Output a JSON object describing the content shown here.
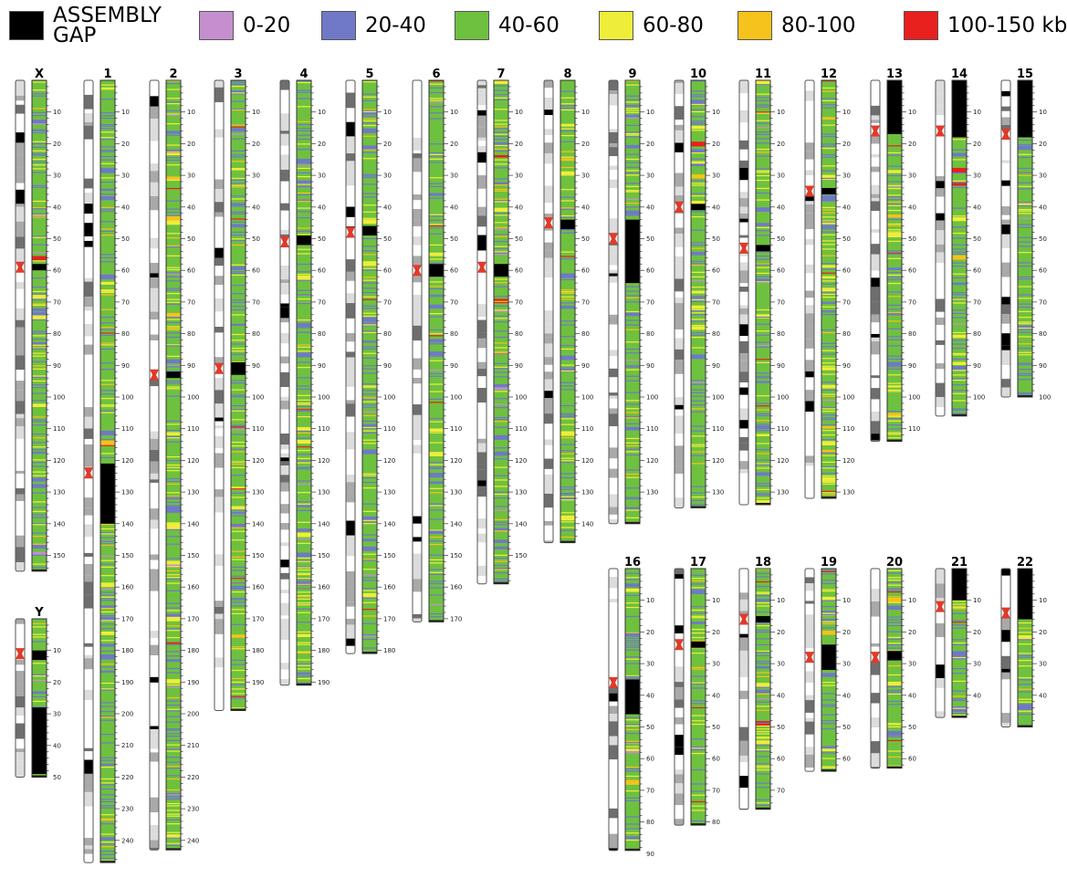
{
  "legend": {
    "items": [
      {
        "label": "ASSEMBLY GAP",
        "line1": "ASSEMBLY",
        "line2": "GAP",
        "color": "#000000",
        "kind": "gap"
      },
      {
        "label": "0-20",
        "color": "#c58fcf"
      },
      {
        "label": "20-40",
        "color": "#7079c7"
      },
      {
        "label": "40-60",
        "color": "#6ec13f"
      },
      {
        "label": "60-80",
        "color": "#eeee3a"
      },
      {
        "label": "80-100",
        "color": "#f6c21c"
      },
      {
        "label": "100-150 kb",
        "color": "#e8201e"
      }
    ]
  },
  "palette": {
    "band_white": "#ffffff",
    "band_light": "#dcdcdc",
    "band_mid": "#a9a9a9",
    "band_dark": "#6e6e6e",
    "band_black": "#000000",
    "centromere": "#e03a2a",
    "outline": "#555555"
  },
  "chromosomes": [
    {
      "name": "X",
      "length_mb": 155,
      "centromere_mb": 59,
      "gaps": [
        [
          58,
          60
        ]
      ],
      "ticks": [
        10,
        20,
        30,
        40,
        50,
        60,
        70,
        80,
        90,
        100,
        110,
        120,
        130,
        140,
        150
      ]
    },
    {
      "name": "1",
      "length_mb": 247,
      "centromere_mb": 124,
      "gaps": [
        [
          121,
          140
        ]
      ],
      "ticks": [
        10,
        20,
        30,
        40,
        50,
        60,
        70,
        80,
        90,
        100,
        110,
        120,
        130,
        140,
        150,
        160,
        170,
        180,
        190,
        200,
        210,
        220,
        230,
        240
      ]
    },
    {
      "name": "2",
      "length_mb": 243,
      "centromere_mb": 93,
      "gaps": [
        [
          92,
          94
        ]
      ],
      "ticks": [
        10,
        20,
        30,
        40,
        50,
        60,
        70,
        80,
        90,
        100,
        110,
        120,
        130,
        140,
        150,
        160,
        170,
        180,
        190,
        200,
        210,
        220,
        230,
        240
      ]
    },
    {
      "name": "3",
      "length_mb": 199,
      "centromere_mb": 91,
      "gaps": [
        [
          89,
          93
        ]
      ],
      "ticks": [
        10,
        20,
        30,
        40,
        50,
        60,
        70,
        80,
        90,
        100,
        110,
        120,
        130,
        140,
        150,
        160,
        170,
        180,
        190
      ]
    },
    {
      "name": "4",
      "length_mb": 191,
      "centromere_mb": 51,
      "gaps": [
        [
          49,
          52
        ]
      ],
      "ticks": [
        10,
        20,
        30,
        40,
        50,
        60,
        70,
        80,
        90,
        100,
        110,
        120,
        130,
        140,
        150,
        160,
        170,
        180,
        190
      ]
    },
    {
      "name": "5",
      "length_mb": 181,
      "centromere_mb": 48,
      "gaps": [
        [
          46,
          49
        ]
      ],
      "ticks": [
        10,
        20,
        30,
        40,
        50,
        60,
        70,
        80,
        90,
        100,
        110,
        120,
        130,
        140,
        150,
        160,
        170,
        180
      ]
    },
    {
      "name": "6",
      "length_mb": 171,
      "centromere_mb": 60,
      "gaps": [
        [
          58,
          62
        ]
      ],
      "ticks": [
        10,
        20,
        30,
        40,
        50,
        60,
        70,
        80,
        90,
        100,
        110,
        120,
        130,
        140,
        150,
        160,
        170
      ]
    },
    {
      "name": "7",
      "length_mb": 159,
      "centromere_mb": 59,
      "gaps": [
        [
          58,
          62
        ]
      ],
      "ticks": [
        10,
        20,
        30,
        40,
        50,
        60,
        70,
        80,
        90,
        100,
        110,
        120,
        130,
        140,
        150
      ]
    },
    {
      "name": "8",
      "length_mb": 146,
      "centromere_mb": 45,
      "gaps": [
        [
          44,
          47
        ]
      ],
      "ticks": [
        10,
        20,
        30,
        40,
        50,
        60,
        70,
        80,
        90,
        100,
        110,
        120,
        130,
        140
      ]
    },
    {
      "name": "9",
      "length_mb": 140,
      "centromere_mb": 50,
      "gaps": [
        [
          44,
          64
        ]
      ],
      "ticks": [
        10,
        20,
        30,
        40,
        50,
        60,
        70,
        80,
        90,
        100,
        110,
        120,
        130
      ]
    },
    {
      "name": "10",
      "length_mb": 135,
      "centromere_mb": 40,
      "gaps": [
        [
          39,
          41
        ]
      ],
      "ticks": [
        10,
        20,
        30,
        40,
        50,
        60,
        70,
        80,
        90,
        100,
        110,
        120,
        130
      ]
    },
    {
      "name": "11",
      "length_mb": 134,
      "centromere_mb": 53,
      "gaps": [
        [
          52,
          54
        ]
      ],
      "ticks": [
        10,
        20,
        30,
        40,
        50,
        60,
        70,
        80,
        90,
        100,
        110,
        120,
        130
      ]
    },
    {
      "name": "12",
      "length_mb": 132,
      "centromere_mb": 35,
      "gaps": [
        [
          34,
          36
        ]
      ],
      "ticks": [
        10,
        20,
        30,
        40,
        50,
        60,
        70,
        80,
        90,
        100,
        110,
        120,
        130
      ]
    },
    {
      "name": "13",
      "length_mb": 114,
      "centromere_mb": 16,
      "gaps": [
        [
          0,
          17
        ]
      ],
      "ticks": [
        10,
        20,
        30,
        40,
        50,
        60,
        70,
        80,
        90,
        100,
        110
      ]
    },
    {
      "name": "14",
      "length_mb": 106,
      "centromere_mb": 16,
      "gaps": [
        [
          0,
          18
        ]
      ],
      "ticks": [
        10,
        20,
        30,
        40,
        50,
        60,
        70,
        80,
        90,
        100
      ]
    },
    {
      "name": "15",
      "length_mb": 100,
      "centromere_mb": 17,
      "gaps": [
        [
          0,
          18
        ]
      ],
      "ticks": [
        10,
        20,
        30,
        40,
        50,
        60,
        70,
        80,
        90,
        100
      ]
    },
    {
      "name": "16",
      "length_mb": 89,
      "centromere_mb": 36,
      "gaps": [
        [
          35,
          46
        ]
      ],
      "ticks": [
        10,
        20,
        30,
        40,
        50,
        60,
        70,
        80,
        90
      ]
    },
    {
      "name": "17",
      "length_mb": 81,
      "centromere_mb": 24,
      "gaps": [
        [
          23,
          25
        ]
      ],
      "ticks": [
        10,
        20,
        30,
        40,
        50,
        60,
        70,
        80
      ]
    },
    {
      "name": "18",
      "length_mb": 76,
      "centromere_mb": 16,
      "gaps": [
        [
          15,
          17
        ]
      ],
      "ticks": [
        10,
        20,
        30,
        40,
        50,
        60,
        70
      ]
    },
    {
      "name": "19",
      "length_mb": 64,
      "centromere_mb": 28,
      "gaps": [
        [
          24,
          32
        ]
      ],
      "ticks": [
        10,
        20,
        30,
        40,
        50,
        60
      ]
    },
    {
      "name": "20",
      "length_mb": 63,
      "centromere_mb": 28,
      "gaps": [
        [
          26,
          29
        ]
      ],
      "ticks": [
        10,
        20,
        30,
        40,
        50,
        60
      ]
    },
    {
      "name": "21",
      "length_mb": 47,
      "centromere_mb": 12,
      "gaps": [
        [
          0,
          10
        ]
      ],
      "ticks": [
        10,
        20,
        30,
        40
      ]
    },
    {
      "name": "22",
      "length_mb": 50,
      "centromere_mb": 14,
      "gaps": [
        [
          0,
          16
        ]
      ],
      "ticks": [
        10,
        20,
        30,
        40
      ]
    },
    {
      "name": "Y",
      "length_mb": 50,
      "centromere_mb": 11,
      "gaps": [
        [
          10,
          13
        ],
        [
          28,
          49
        ]
      ],
      "ticks": [
        10,
        20,
        30,
        40,
        50
      ]
    }
  ]
}
